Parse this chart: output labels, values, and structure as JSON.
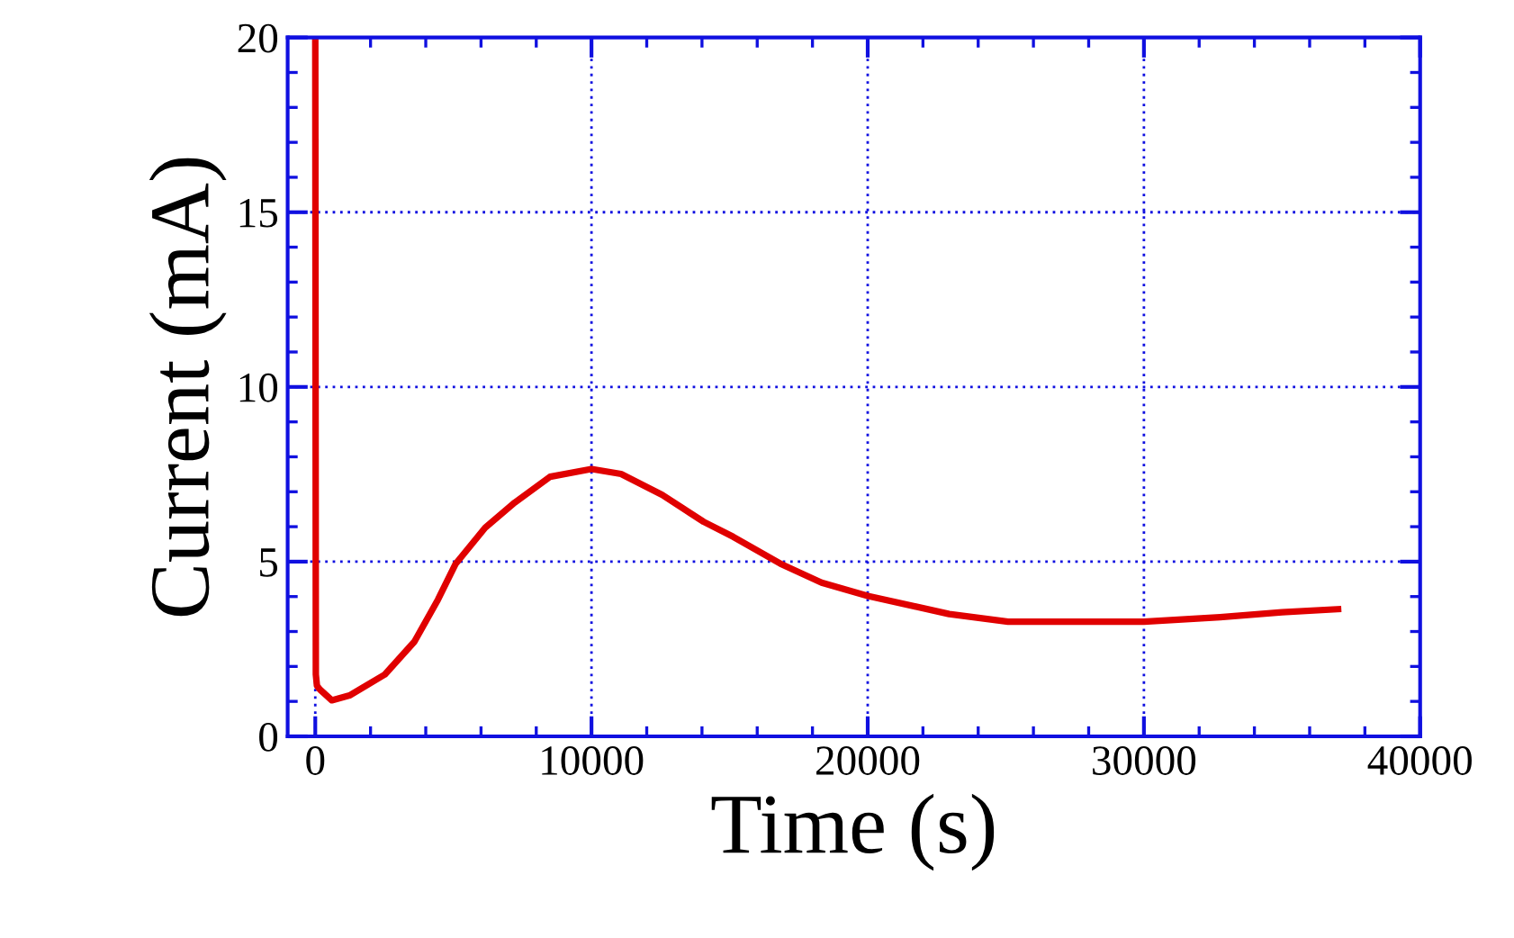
{
  "chart_data": {
    "type": "line",
    "xlabel": "Time (s)",
    "ylabel": "Current (mA)",
    "xlim": [
      -1000,
      40000
    ],
    "xticks": [
      0,
      10000,
      20000,
      30000,
      40000
    ],
    "ylim": [
      0,
      20
    ],
    "yticks": [
      0,
      5,
      10,
      15,
      20
    ],
    "grid": true,
    "marker": "none",
    "line_style": "solid",
    "series": [
      {
        "color": "#e00000",
        "x": [
          0,
          20,
          60,
          170,
          600,
          1240,
          2520,
          3590,
          4440,
          5085,
          6150,
          7220,
          8500,
          10000,
          11070,
          12560,
          14060,
          15130,
          16840,
          18330,
          20000,
          22950,
          25080,
          30000,
          32760,
          35000,
          37030
        ],
        "values": [
          20,
          1.77,
          1.45,
          1.34,
          1.03,
          1.17,
          1.77,
          2.71,
          3.91,
          4.94,
          5.97,
          6.69,
          7.43,
          7.65,
          7.51,
          6.91,
          6.14,
          5.71,
          4.94,
          4.4,
          4.02,
          3.5,
          3.28,
          3.28,
          3.41,
          3.55,
          3.64
        ]
      }
    ]
  }
}
